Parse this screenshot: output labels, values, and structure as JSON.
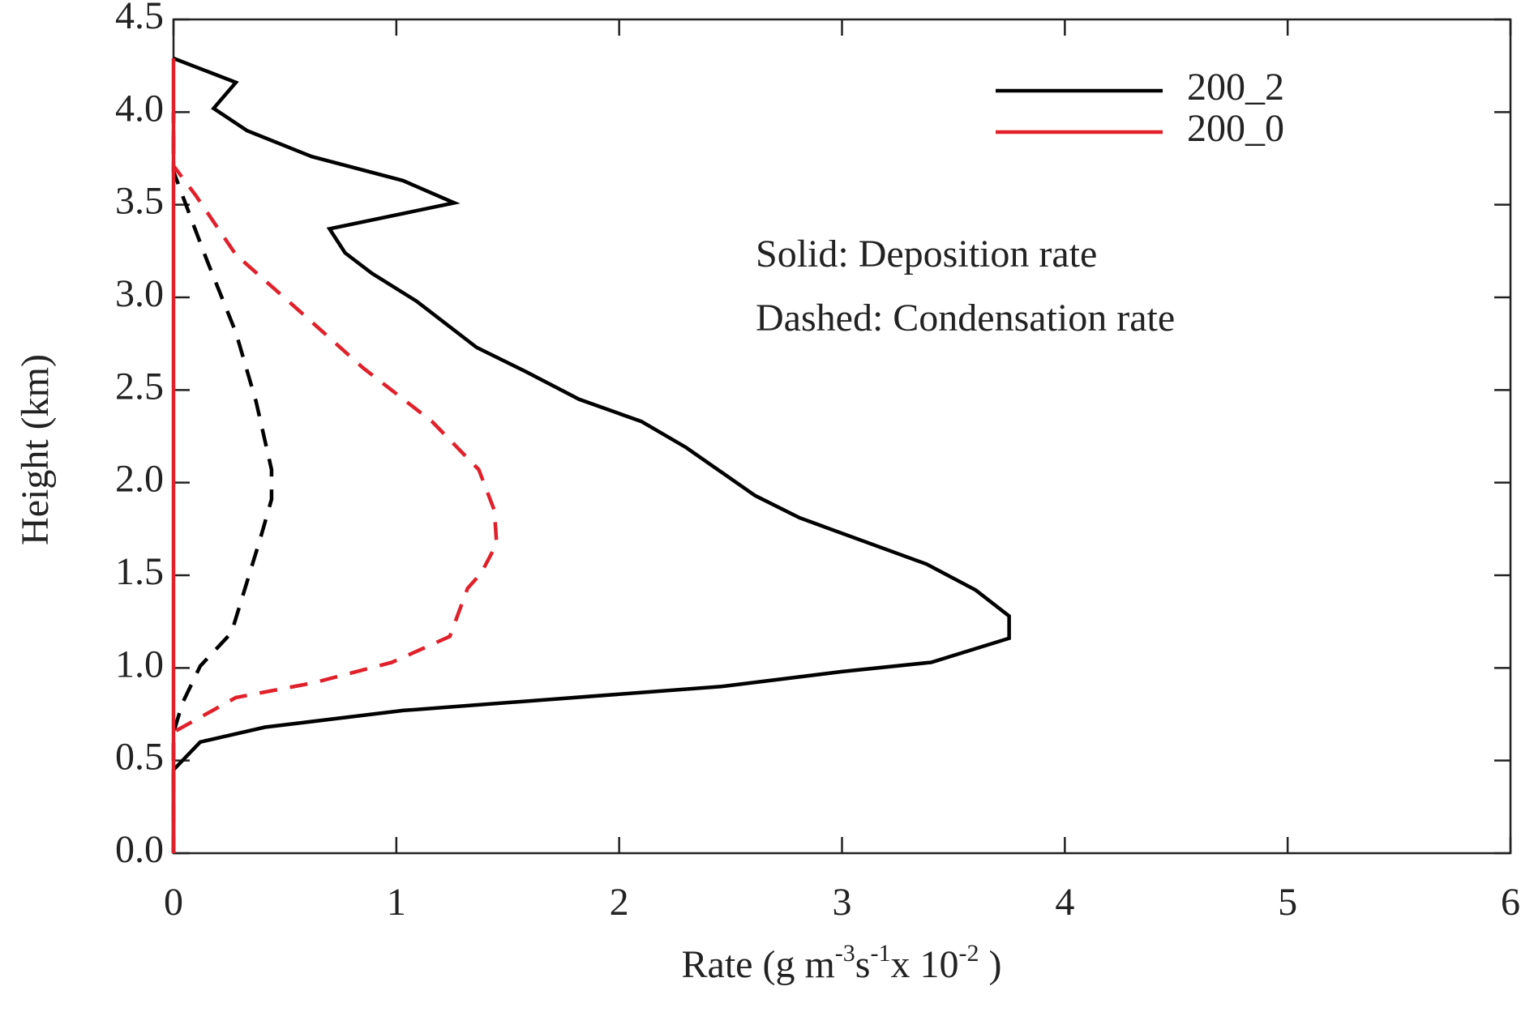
{
  "chart_data": {
    "type": "line",
    "xlabel": [
      "Rate (g m",
      "-3",
      "s",
      "-1",
      "x 10",
      "-2",
      " )"
    ],
    "ylabel": "Height (km)",
    "annotations": [
      "Solid: Deposition rate",
      "Dashed: Condensation rate"
    ],
    "xlim": [
      0,
      6
    ],
    "xticks": [
      0,
      1,
      2,
      3,
      4,
      5,
      6
    ],
    "ylim": [
      0,
      4.5
    ],
    "yticks": [
      {
        "value": 0,
        "label": "0.0"
      },
      0.5,
      {
        "value": 1,
        "label": "1.0"
      },
      1.5,
      {
        "value": 2,
        "label": "2.0"
      },
      2.5,
      {
        "value": 3,
        "label": "3.0"
      },
      3.5,
      {
        "value": 4,
        "label": "4.0"
      },
      4.5
    ],
    "legend": "upper right",
    "series": [
      {
        "name": "200_2",
        "color": "#000000",
        "deposition": {
          "values": [
            0,
            0,
            0.12,
            0.41,
            1.03,
            2.46,
            3.0,
            3.4,
            3.75,
            3.75,
            3.6,
            3.38,
            2.81,
            2.61,
            2.3,
            2.1,
            1.82,
            1.58,
            1.36,
            1.09,
            0.89,
            0.77,
            0.7,
            1.26,
            1.03,
            0.62,
            0.33,
            0.18,
            0.28,
            0
          ],
          "heights": [
            0,
            0.45,
            0.6,
            0.68,
            0.77,
            0.9,
            0.98,
            1.03,
            1.16,
            1.28,
            1.42,
            1.56,
            1.81,
            1.93,
            2.19,
            2.33,
            2.45,
            2.6,
            2.73,
            2.98,
            3.13,
            3.24,
            3.37,
            3.51,
            3.63,
            3.76,
            3.9,
            4.02,
            4.16,
            4.29
          ]
        },
        "condensation": {
          "values": [
            0,
            0,
            0.04,
            0.12,
            0.26,
            0.39,
            0.44,
            0.44,
            0.37,
            0.28,
            0.15,
            0.09,
            0,
            0
          ],
          "heights": [
            0,
            0.65,
            0.81,
            1.01,
            1.19,
            1.7,
            1.91,
            2.07,
            2.44,
            2.81,
            3.2,
            3.39,
            3.68,
            4.0
          ]
        }
      },
      {
        "name": "200_0",
        "color": "#e0202a",
        "deposition": {
          "values": [
            0,
            0
          ],
          "heights": [
            0,
            4.29
          ]
        },
        "condensation": {
          "values": [
            0,
            0,
            0.01,
            0.28,
            0.63,
            0.98,
            1.24,
            1.32,
            1.38,
            1.45,
            1.44,
            1.37,
            1.16,
            0.85,
            0.59,
            0.28,
            0.1,
            0,
            0
          ],
          "heights": [
            0,
            0.62,
            0.66,
            0.84,
            0.92,
            1.03,
            1.17,
            1.43,
            1.51,
            1.67,
            1.85,
            2.07,
            2.33,
            2.62,
            2.9,
            3.23,
            3.55,
            3.71,
            4.0
          ]
        }
      }
    ]
  }
}
